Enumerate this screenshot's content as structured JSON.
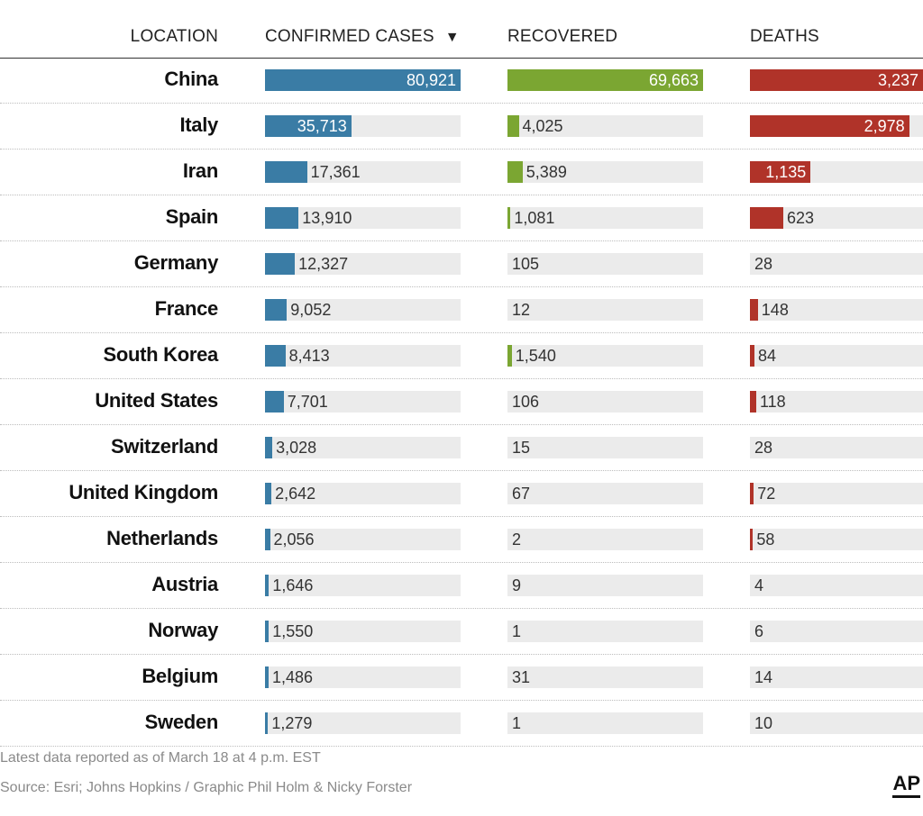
{
  "header": {
    "location": "LOCATION",
    "confirmed": "CONFIRMED CASES",
    "sort_indicator": "▼",
    "recovered": "RECOVERED",
    "deaths": "DEATHS"
  },
  "colors": {
    "confirmed": "#3a7ca5",
    "recovered": "#7ba632",
    "deaths": "#b03329",
    "track": "#ebebeb"
  },
  "chart_data": {
    "type": "table",
    "columns": [
      "LOCATION",
      "CONFIRMED CASES",
      "RECOVERED",
      "DEATHS"
    ],
    "rows": [
      {
        "location": "China",
        "confirmed": 80921,
        "recovered": 69663,
        "deaths": 3237
      },
      {
        "location": "Italy",
        "confirmed": 35713,
        "recovered": 4025,
        "deaths": 2978
      },
      {
        "location": "Iran",
        "confirmed": 17361,
        "recovered": 5389,
        "deaths": 1135
      },
      {
        "location": "Spain",
        "confirmed": 13910,
        "recovered": 1081,
        "deaths": 623
      },
      {
        "location": "Germany",
        "confirmed": 12327,
        "recovered": 105,
        "deaths": 28
      },
      {
        "location": "France",
        "confirmed": 9052,
        "recovered": 12,
        "deaths": 148
      },
      {
        "location": "South Korea",
        "confirmed": 8413,
        "recovered": 1540,
        "deaths": 84
      },
      {
        "location": "United States",
        "confirmed": 7701,
        "recovered": 106,
        "deaths": 118
      },
      {
        "location": "Switzerland",
        "confirmed": 3028,
        "recovered": 15,
        "deaths": 28
      },
      {
        "location": "United Kingdom",
        "confirmed": 2642,
        "recovered": 67,
        "deaths": 72
      },
      {
        "location": "Netherlands",
        "confirmed": 2056,
        "recovered": 2,
        "deaths": 58
      },
      {
        "location": "Austria",
        "confirmed": 1646,
        "recovered": 9,
        "deaths": 4
      },
      {
        "location": "Norway",
        "confirmed": 1550,
        "recovered": 1,
        "deaths": 6
      },
      {
        "location": "Belgium",
        "confirmed": 1486,
        "recovered": 31,
        "deaths": 14
      },
      {
        "location": "Sweden",
        "confirmed": 1279,
        "recovered": 1,
        "deaths": 10
      }
    ]
  },
  "footer": {
    "note": "Latest data reported as of March 18 at 4 p.m. EST",
    "source": "Source: Esri; Johns Hopkins / Graphic Phil Holm & Nicky Forster",
    "logo": "AP"
  }
}
